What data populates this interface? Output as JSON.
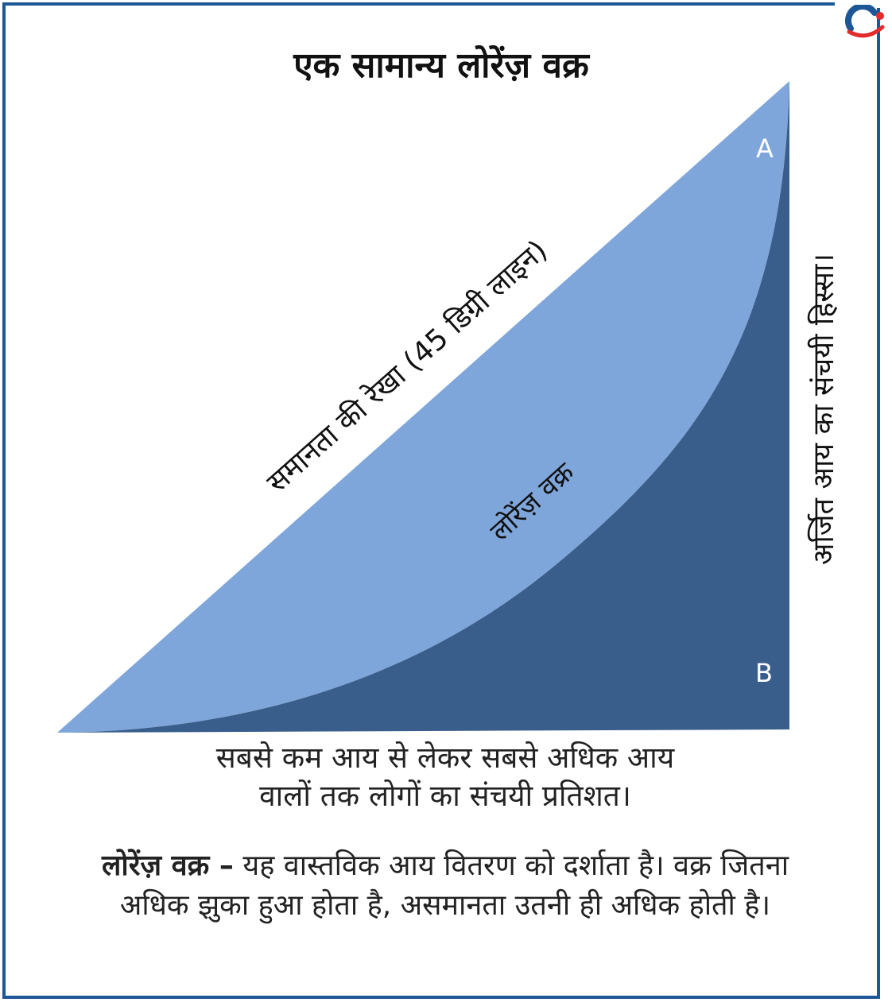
{
  "title": "एक सामान्य लोरेंज़ वक्र",
  "labels": {
    "equality_line": "समानता की रेखा (45 डिग्री लाइन)",
    "lorenz_curve": "लोरेंज़ वक्र",
    "area_a": "A",
    "area_b": "B",
    "y_axis": "अर्जित आय का संचयी हिस्सा।",
    "x_axis_line1": "सबसे कम आय से लेकर सबसे अधिक आय",
    "x_axis_line2": "वालों तक लोगों का संचयी प्रतिशत।"
  },
  "description": {
    "term": "लोरेंज़ वक्र –",
    "text": " यह वास्तविक आय वितरण को दर्शाता है। वक्र जितना अधिक झुका हुआ होता है, असमानता उतनी ही अधिक होती है।"
  },
  "colors": {
    "area_a": "#7fa6da",
    "area_b": "#3a5e8c",
    "frame": "#1d5796",
    "logo_red": "#e32b2b"
  }
}
